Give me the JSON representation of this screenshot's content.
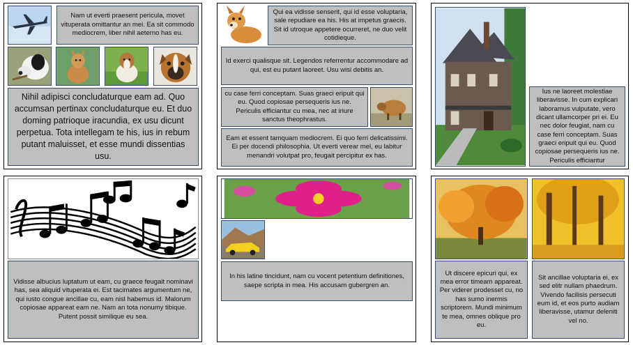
{
  "panel1": {
    "text_top": "Nam ut everti praesent pericula, movet vituperata omittantur an mei. Ea sit commodo mediocrem, liber nihil aeterno has eu.",
    "text_bottom": "Nihil adipisci concludaturque eam ad. Quo accumsan pertinax concludaturque eu. Et duo doming patrioque iracundia, ex usu dicunt perpetua. Tota intellegam te his, ius in rebum putant maluisset, et esse mundi dissentias usu."
  },
  "panel2": {
    "text_1": "Qui ea vidisse senserit, qui id esse voluptaria, sale repudiare ea his. His at impetus graecis. Sit id utroque appetere ocurreret, ne duo velit cotidieque.",
    "text_2": "Id exerci qualisque sit. Legendos referrentur accommodare ad qui, est eu putant laoreet. Usu wisi debitis an.",
    "text_3": "cu case ferri conceptam. Suas graeci eripuit qui eu. Quod copiosae persequeris ius ne. Periculis efficiantur cu mea, nec at iriure sanctus theophrastus.",
    "text_4": "Eam et essent tamquam mediocrem. Ei quo ferri delicatissimi. Ei per docendi philosophia. Ut everti verear mel, eu labitur menandri volutpat pro, feugait percipitur ex has."
  },
  "panel3": {
    "text": "Ius ne laoreet molestiae liberavisse. In cum explicari laboramus vulputate, vero dicant ullamcorper pri ei. Eu nec dolor feugiat, nam cu case ferri conceptam. Suas graeci eripuit qui eu. Quod copiosae persequeris ius ne. Periculis efficiantur"
  },
  "panel4": {
    "text": "Vidisse albucius luptatum ut eam, cu graece feugait nominavi has, sea aliquid vituperata ei. Est tacimates argumentum ne, qui iusto congue ancillae cu, eam nisl habemus id. Malorum copiosae appareat eam ne. Nam an tota nonumy tibique. Putent possit similique eu sea."
  },
  "panel5": {
    "text": "In his latine tincidunt, nam cu vocent petentium definitiones, saepe scripta in mea. His accusam gubergren an."
  },
  "panel6": {
    "text_left": "Ut discere epicuri qui, ex mea error timeam appareat. Per viderer prodesset cu, no has sumo inermis scriptorem. Mundi minimum te mea, omnes oblique pro eu.",
    "text_right": "Sit ancillae voluptaria ei, ex sed elitr nullam phaedrum. Vivendo facilisis persecuti eum id, et eos purto audiam liberavisse, utamur deleniti vel no."
  },
  "colors": {
    "text_box_bg": "#bfbfbf",
    "text_box_border": "#3a4a6b",
    "panel_border": "#000000"
  }
}
